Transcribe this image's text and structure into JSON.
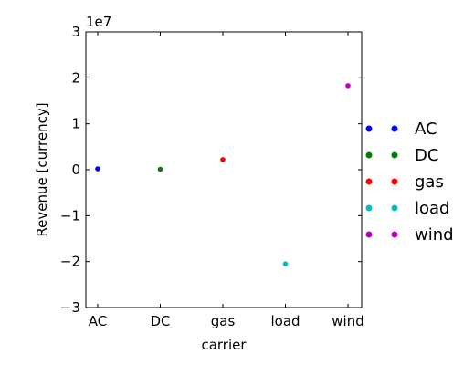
{
  "chart_data": {
    "type": "scatter",
    "title": "",
    "xlabel": "carrier",
    "ylabel": "Revenue [currency]",
    "y_exponent_label": "1e7",
    "categories": [
      "AC",
      "DC",
      "gas",
      "load",
      "wind"
    ],
    "ylim": [
      -3,
      3
    ],
    "y_ticks": [
      -3,
      -2,
      -1,
      0,
      1,
      2,
      3
    ],
    "y_tick_labels": [
      "−3",
      "−2",
      "−1",
      "0",
      "1",
      "2",
      "3"
    ],
    "y_unit_multiplier": 10000000,
    "grid": false,
    "legend_placement": "right",
    "series": [
      {
        "name": "AC",
        "x": "AC",
        "value": 0.02,
        "color": "#0000ff"
      },
      {
        "name": "DC",
        "x": "DC",
        "value": 0.01,
        "color": "#008000"
      },
      {
        "name": "gas",
        "x": "gas",
        "value": 0.22,
        "color": "#ff0000"
      },
      {
        "name": "load",
        "x": "load",
        "value": -2.05,
        "color": "#00bfbf"
      },
      {
        "name": "wind",
        "x": "wind",
        "value": 1.83,
        "color": "#bf00bf"
      }
    ]
  }
}
